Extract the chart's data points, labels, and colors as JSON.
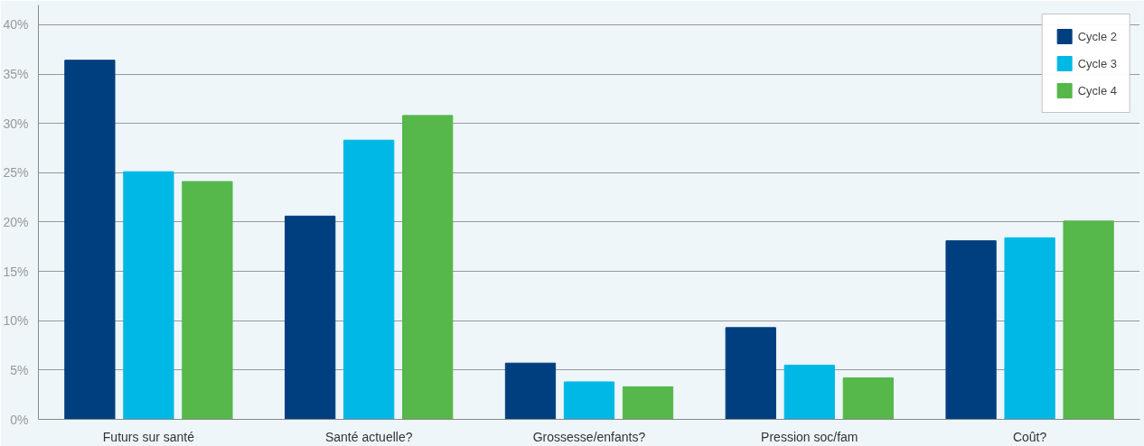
{
  "chart_data": {
    "type": "bar",
    "categories": [
      "Futurs sur santé",
      "Santé actuelle?",
      "Grossesse/enfants?",
      "Pression soc/fam",
      "Coût?"
    ],
    "series": [
      {
        "name": "Cycle 2",
        "color": "#003f7f",
        "values": [
          36.4,
          20.6,
          5.7,
          9.3,
          18.1
        ]
      },
      {
        "name": "Cycle 3",
        "color": "#00b8e6",
        "values": [
          25.1,
          28.3,
          3.8,
          5.5,
          18.4
        ]
      },
      {
        "name": "Cycle 4",
        "color": "#56b74a",
        "values": [
          24.1,
          30.8,
          3.3,
          4.2,
          20.1
        ]
      }
    ],
    "ylim": [
      0,
      42
    ],
    "yticks": [
      {
        "value": 0,
        "label": "0%"
      },
      {
        "value": 5,
        "label": "5%"
      },
      {
        "value": 10,
        "label": "10%"
      },
      {
        "value": 15,
        "label": "15%"
      },
      {
        "value": 20,
        "label": "20%"
      },
      {
        "value": 25,
        "label": "25%"
      },
      {
        "value": 30,
        "label": "30%"
      },
      {
        "value": 35,
        "label": "35%"
      },
      {
        "value": 40,
        "label": "40%"
      }
    ],
    "grid": "y",
    "legend": "top right"
  }
}
